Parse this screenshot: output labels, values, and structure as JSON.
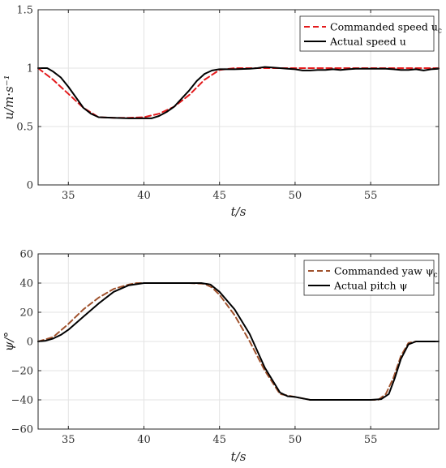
{
  "chart_data": [
    {
      "type": "line",
      "xlabel": "t/s",
      "ylabel": "u/m·s⁻¹",
      "xlim": [
        33,
        59.5
      ],
      "ylim": [
        0,
        1.5
      ],
      "xticks": [
        35,
        40,
        45,
        50,
        55
      ],
      "yticks": [
        0,
        0.5,
        1,
        1.5
      ],
      "ytick_labels": [
        "0",
        "0.5",
        "1",
        "1.5"
      ],
      "grid": true,
      "legend_position": "top-right",
      "series": [
        {
          "name": "Commanded speed u_c",
          "color": "#e31a1c",
          "style": "dashed",
          "x": [
            33,
            34,
            35,
            36,
            37,
            38,
            39,
            40,
            41,
            42,
            43,
            44,
            45,
            46,
            47,
            48,
            49,
            50,
            51,
            52,
            53,
            54,
            55,
            56,
            57,
            58,
            59,
            59.5
          ],
          "y": [
            1.0,
            0.9,
            0.78,
            0.66,
            0.58,
            0.575,
            0.575,
            0.58,
            0.61,
            0.67,
            0.77,
            0.9,
            0.985,
            1.0,
            1.0,
            1.0,
            1.0,
            1.0,
            1.0,
            1.0,
            1.0,
            1.0,
            1.0,
            1.0,
            1.0,
            1.0,
            1.0,
            1.0
          ]
        },
        {
          "name": "Actual speed u",
          "color": "#000000",
          "style": "solid",
          "x": [
            33,
            33.6,
            34,
            34.5,
            35,
            35.5,
            36,
            36.5,
            37,
            38,
            39,
            40,
            40.5,
            41,
            41.5,
            42,
            42.5,
            43,
            43.5,
            44,
            44.5,
            45,
            46,
            47,
            47.5,
            48,
            48.5,
            49,
            49.5,
            50,
            50.5,
            51,
            51.5,
            52,
            52.5,
            53,
            53.5,
            54,
            55,
            56,
            56.5,
            57,
            57.5,
            58,
            58.5,
            59,
            59.5
          ],
          "y": [
            1.0,
            1.0,
            0.97,
            0.92,
            0.84,
            0.75,
            0.66,
            0.61,
            0.58,
            0.575,
            0.57,
            0.57,
            0.57,
            0.59,
            0.625,
            0.67,
            0.74,
            0.81,
            0.89,
            0.95,
            0.98,
            0.99,
            0.99,
            0.995,
            1.0,
            1.01,
            1.005,
            1.0,
            0.995,
            0.99,
            0.98,
            0.98,
            0.985,
            0.985,
            0.99,
            0.985,
            0.99,
            0.995,
            0.995,
            0.995,
            0.99,
            0.985,
            0.985,
            0.99,
            0.98,
            0.99,
            0.995
          ]
        }
      ]
    },
    {
      "type": "line",
      "xlabel": "t/s",
      "ylabel": "ψ/°",
      "xlim": [
        33,
        59.5
      ],
      "ylim": [
        -60,
        60
      ],
      "xticks": [
        35,
        40,
        45,
        50,
        55
      ],
      "yticks": [
        -60,
        -40,
        -20,
        0,
        20,
        40,
        60
      ],
      "ytick_labels": [
        "−60",
        "−40",
        "−20",
        "0",
        "20",
        "40",
        "60"
      ],
      "grid": true,
      "legend_position": "top-right",
      "series": [
        {
          "name": "Commanded yaw ψ_c",
          "color": "#a0522d",
          "style": "dashed",
          "x": [
            33,
            34,
            35,
            36,
            37,
            38,
            39,
            39.5,
            40,
            41,
            42,
            43,
            44,
            44.5,
            45,
            46,
            47,
            48,
            49,
            50,
            51,
            52,
            53,
            54,
            55,
            55.5,
            56,
            56.5,
            57,
            57.5,
            58,
            59,
            59.5
          ],
          "y": [
            0,
            3,
            12,
            22,
            30,
            36,
            39,
            40,
            40,
            40,
            40,
            40,
            39.5,
            37,
            32,
            18,
            0,
            -20,
            -36,
            -38,
            -40,
            -40,
            -40,
            -40,
            -40,
            -40,
            -36,
            -25,
            -10,
            -1,
            0,
            0,
            0
          ]
        },
        {
          "name": "Actual pitch ψ",
          "color": "#000000",
          "style": "solid",
          "x": [
            33,
            33.5,
            34,
            34.5,
            35,
            36,
            37,
            38,
            39,
            40,
            41,
            42,
            43,
            43.8,
            44.4,
            45,
            46,
            47,
            48,
            49,
            49.5,
            50,
            50.5,
            51,
            52,
            53,
            54,
            55,
            55.7,
            56.2,
            56.6,
            57,
            57.5,
            58,
            59,
            59.5
          ],
          "y": [
            0,
            0.5,
            2,
            4.5,
            8,
            17,
            26,
            34,
            38.5,
            40,
            40,
            40,
            40,
            40,
            39,
            34,
            22,
            5,
            -18,
            -35,
            -37.5,
            -38,
            -39,
            -40,
            -40,
            -40,
            -40,
            -40,
            -39.5,
            -36,
            -25,
            -12,
            -2,
            0,
            0,
            0
          ]
        }
      ]
    }
  ]
}
